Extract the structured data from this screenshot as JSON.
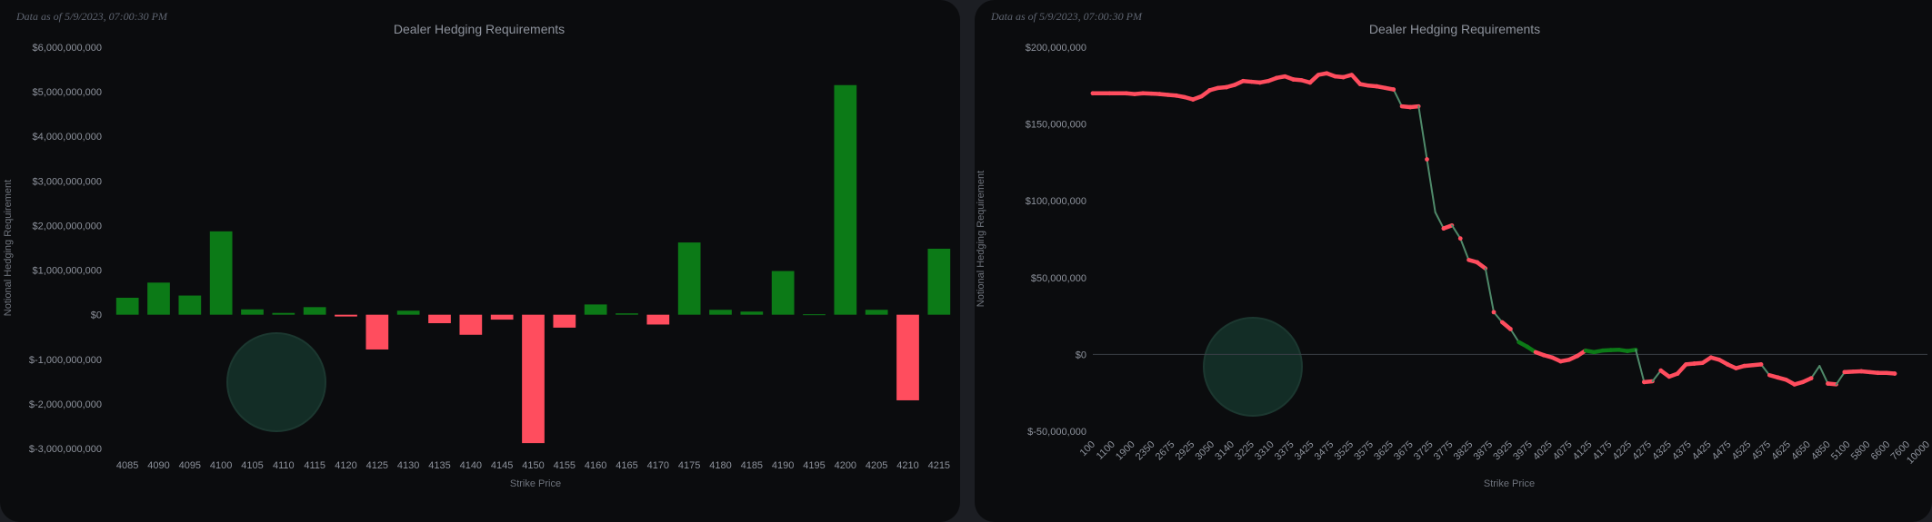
{
  "chart_data": [
    {
      "type": "bar",
      "title": "Dealer Hedging Requirements",
      "timestamp": "Data as of 5/9/2023, 07:00:30 PM",
      "xlabel": "Strike Price",
      "ylabel": "Notional Hedging Requirement",
      "ylim": [
        -3000000000,
        6000000000
      ],
      "y_ticks": [
        "$-3,000,000,000",
        "$-2,000,000,000",
        "$-1,000,000,000",
        "$0",
        "$1,000,000,000",
        "$2,000,000,000",
        "$3,000,000,000",
        "$4,000,000,000",
        "$5,000,000,000",
        "$6,000,000,000"
      ],
      "categories": [
        "4085",
        "4090",
        "4095",
        "4100",
        "4105",
        "4110",
        "4115",
        "4120",
        "4125",
        "4130",
        "4135",
        "4140",
        "4145",
        "4150",
        "4155",
        "4160",
        "4165",
        "4170",
        "4175",
        "4180",
        "4185",
        "4190",
        "4195",
        "4200",
        "4205",
        "4210",
        "4215"
      ],
      "values": [
        380000000,
        720000000,
        430000000,
        1870000000,
        120000000,
        40000000,
        170000000,
        -40000000,
        -780000000,
        90000000,
        -190000000,
        -450000000,
        -110000000,
        -2880000000,
        -290000000,
        230000000,
        30000000,
        -220000000,
        1620000000,
        110000000,
        70000000,
        980000000,
        10000000,
        5150000000,
        110000000,
        -1920000000,
        1480000000
      ],
      "colors": {
        "positive": "#0c7a17",
        "negative": "#ff4d5e",
        "text": "#8d929c"
      }
    },
    {
      "type": "line",
      "title": "Dealer Hedging Requirements",
      "timestamp": "Data as of 5/9/2023, 07:00:30 PM",
      "xlabel": "Strike Price",
      "ylabel": "Notional Hedging Requirement",
      "ylim": [
        -50000000,
        200000000
      ],
      "y_ticks": [
        "$-50,000,000",
        "$0",
        "$50,000,000",
        "$100,000,000",
        "$150,000,000",
        "$200,000,000"
      ],
      "x_ticks": [
        "100",
        "1100",
        "1900",
        "2350",
        "2675",
        "2925",
        "3050",
        "3140",
        "3225",
        "3310",
        "3375",
        "3425",
        "3475",
        "3525",
        "3575",
        "3625",
        "3675",
        "3725",
        "3775",
        "3825",
        "3875",
        "3925",
        "3975",
        "4025",
        "4075",
        "4125",
        "4175",
        "4225",
        "4275",
        "4325",
        "4375",
        "4425",
        "4475",
        "4525",
        "4575",
        "4625",
        "4650",
        "4850",
        "5100",
        "5800",
        "6600",
        "7600",
        "10000"
      ],
      "series": [
        {
          "values": [
            170000000,
            170000000,
            170000000,
            170000000,
            170000000,
            169500000,
            170000000,
            169800000,
            169500000,
            169000000,
            168500000,
            167500000,
            166000000,
            168000000,
            172000000,
            173500000,
            174000000,
            175500000,
            178000000,
            177500000,
            177000000,
            178000000,
            180000000,
            181000000,
            179000000,
            178500000,
            177000000,
            182000000,
            183000000,
            181000000,
            180500000,
            182000000,
            176000000,
            175000000,
            174500000,
            173500000,
            172500000,
            161500000,
            161000000,
            161500000,
            127000000,
            92500000,
            82000000,
            84000000,
            75500000,
            61500000,
            60000000,
            56000000,
            27500000,
            21000000,
            16500000,
            8000000,
            5000000,
            1500000,
            -500000,
            -2000000,
            -4500000,
            -3500000,
            -1000000,
            2500000,
            1500000,
            2500000,
            2800000,
            3000000,
            2200000,
            3000000,
            -18000000,
            -17500000,
            -10500000,
            -14500000,
            -12500000,
            -6500000,
            -6000000,
            -5500000,
            -2000000,
            -3500000,
            -6500000,
            -9000000,
            -7500000,
            -7000000,
            -6500000,
            -13500000,
            -15000000,
            -16500000,
            -19500000,
            -18000000,
            -15500000,
            -7500000,
            -19000000,
            -19500000,
            -11500000,
            -11200000,
            -11000000,
            -11500000,
            -12000000,
            -12000000,
            -12500000
          ],
          "colors": {
            "positive": "#0c7a17",
            "negative": "#ff4d5e",
            "connector": "#4f8a6a"
          }
        }
      ]
    }
  ]
}
